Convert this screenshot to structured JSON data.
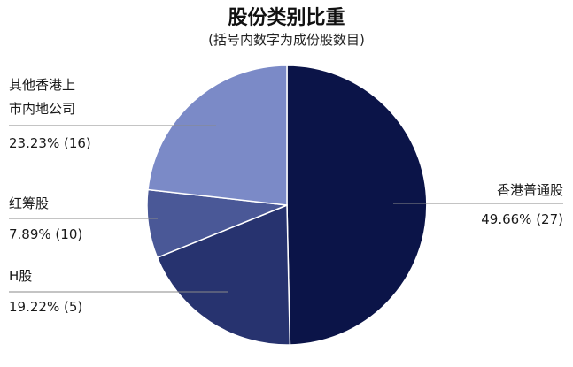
{
  "chart_data": {
    "type": "pie",
    "title": "股份类别比重",
    "subtitle": "(括号内数字为成份股数目)",
    "slices": [
      {
        "name": "香港普通股",
        "percent": 49.66,
        "count": 27,
        "value_label": "49.66% (27)",
        "color": "#0b1448"
      },
      {
        "name": "H股",
        "percent": 19.22,
        "count": 5,
        "value_label": "19.22% (5)",
        "color": "#27336f"
      },
      {
        "name": "红筹股",
        "percent": 7.89,
        "count": 10,
        "value_label": "7.89% (10)",
        "color": "#4a5897"
      },
      {
        "name": "其他香港上市内地公司",
        "name_lines": [
          "其他香港上",
          "市内地公司"
        ],
        "percent": 23.23,
        "count": 16,
        "value_label": "23.23% (16)",
        "color": "#7b8ac7"
      }
    ]
  }
}
